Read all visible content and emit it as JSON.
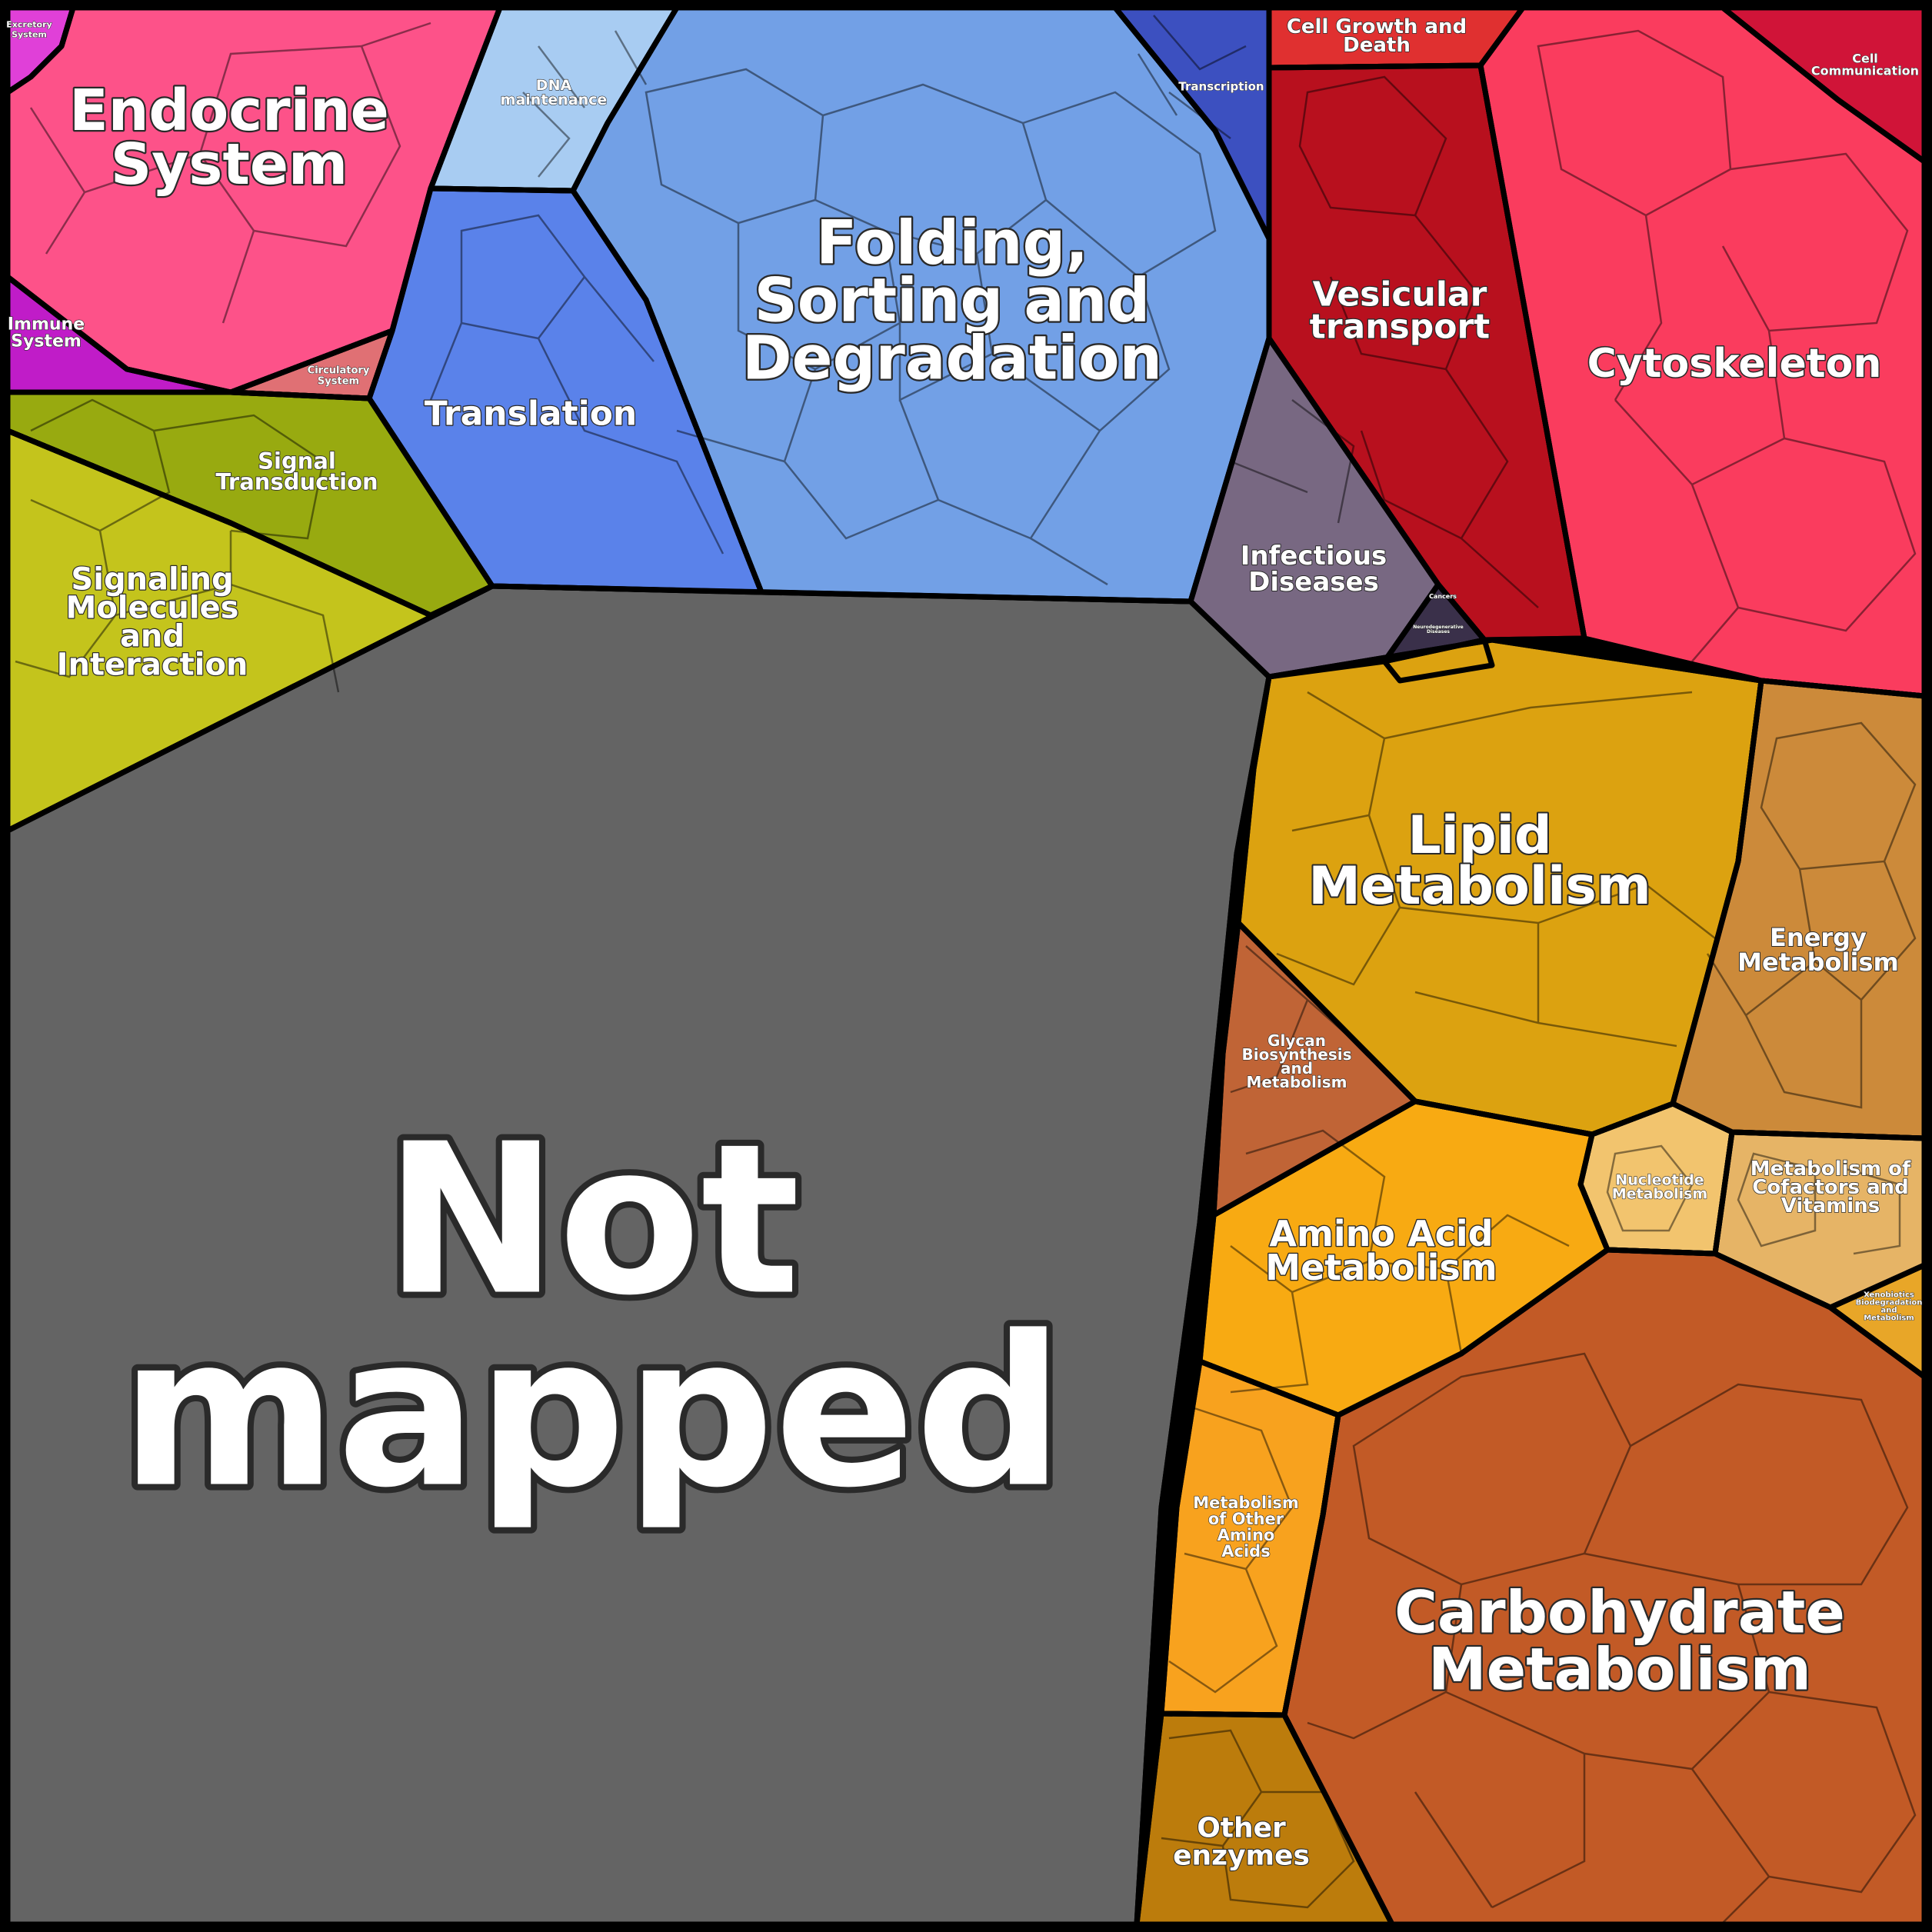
{
  "chart_data": {
    "type": "voronoi-treemap",
    "title": "",
    "regions": [
      {
        "id": "not-mapped",
        "label": [
          "Not",
          "mapped"
        ],
        "color": "#646464"
      },
      {
        "id": "endocrine-system",
        "label": [
          "Endocrine",
          "System"
        ],
        "color": "#fd5289"
      },
      {
        "id": "excretory-system",
        "label": [
          "Excretory",
          "System"
        ],
        "color": "#e040d8"
      },
      {
        "id": "immune-system",
        "label": [
          "Immune",
          "System"
        ],
        "color": "#c01cc8"
      },
      {
        "id": "circulatory-system",
        "label": [
          "Circulatory",
          "System"
        ],
        "color": "#e07074"
      },
      {
        "id": "dna-maintenance",
        "label": [
          "DNA",
          "maintenance"
        ],
        "color": "#a8ccf2"
      },
      {
        "id": "transcription",
        "label": [
          "Transcription"
        ],
        "color": "#3c50c0"
      },
      {
        "id": "folding-sorting-degradation",
        "label": [
          "Folding,",
          "Sorting and",
          "Degradation"
        ],
        "color": "#72a0e6"
      },
      {
        "id": "translation",
        "label": [
          "Translation"
        ],
        "color": "#5a82ea"
      },
      {
        "id": "signal-transduction",
        "label": [
          "Signal",
          "Transduction"
        ],
        "color": "#98aa10"
      },
      {
        "id": "signaling-molecules",
        "label": [
          "Signaling",
          "Molecules",
          "and",
          "Interaction"
        ],
        "color": "#c4c41c"
      },
      {
        "id": "cell-growth-death",
        "label": [
          "Cell Growth and",
          "Death"
        ],
        "color": "#e03030"
      },
      {
        "id": "cell-communication",
        "label": [
          "Cell",
          "Communication"
        ],
        "color": "#d01438"
      },
      {
        "id": "vesicular-transport",
        "label": [
          "Vesicular",
          "transport"
        ],
        "color": "#b8101e"
      },
      {
        "id": "cytoskeleton",
        "label": [
          "Cytoskeleton"
        ],
        "color": "#fa3c5e"
      },
      {
        "id": "infectious-diseases",
        "label": [
          "Infectious",
          "Diseases"
        ],
        "color": "#786882"
      },
      {
        "id": "cancers",
        "label": [
          "Cancers"
        ],
        "color": "#3a304a"
      },
      {
        "id": "neurodegenerative-diseases",
        "label": [
          "Neurodegenerative",
          "Diseases"
        ],
        "color": "#2a2238"
      },
      {
        "id": "lipid-metabolism",
        "label": [
          "Lipid",
          "Metabolism"
        ],
        "color": "#dca210"
      },
      {
        "id": "energy-metabolism",
        "label": [
          "Energy",
          "Metabolism"
        ],
        "color": "#cc8a3a"
      },
      {
        "id": "glycan-biosynthesis",
        "label": [
          "Glycan",
          "Biosynthesis",
          "and",
          "Metabolism"
        ],
        "color": "#c06436"
      },
      {
        "id": "nucleotide-metabolism",
        "label": [
          "Nucleotide",
          "Metabolism"
        ],
        "color": "#f2c46e"
      },
      {
        "id": "cofactors-vitamins",
        "label": [
          "Metabolism of",
          "Cofactors and",
          "Vitamins"
        ],
        "color": "#e6b466"
      },
      {
        "id": "xenobiotics",
        "label": [
          "Xenobiotics",
          "Biodegradation",
          "and",
          "Metabolism"
        ],
        "color": "#e8a628"
      },
      {
        "id": "amino-acid-metabolism",
        "label": [
          "Amino Acid",
          "Metabolism"
        ],
        "color": "#f8aa12"
      },
      {
        "id": "other-amino-acids",
        "label": [
          "Metabolism",
          "of Other",
          "Amino",
          "Acids"
        ],
        "color": "#f8a21e"
      },
      {
        "id": "carbohydrate-metabolism",
        "label": [
          "Carbohydrate",
          "Metabolism"
        ],
        "color": "#c25a26"
      },
      {
        "id": "other-enzymes",
        "label": [
          "Other",
          "enzymes"
        ],
        "color": "#bc7c0c"
      }
    ]
  }
}
